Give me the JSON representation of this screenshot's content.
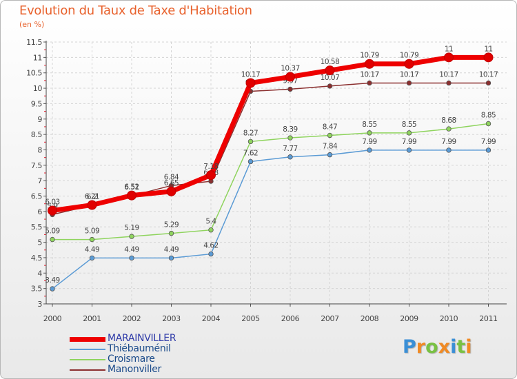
{
  "title": "Evolution du Taux de Taxe d'Habitation",
  "unit": "(en %)",
  "brand": {
    "letters": [
      {
        "ch": "P",
        "color": "#3a8fd6"
      },
      {
        "ch": "r",
        "color": "#f08a24"
      },
      {
        "ch": "o",
        "color": "#79c143"
      },
      {
        "ch": "x",
        "color": "#f08a24"
      },
      {
        "ch": "i",
        "color": "#3a8fd6"
      },
      {
        "ch": "t",
        "color": "#79c143"
      },
      {
        "ch": "i",
        "color": "#f08a24"
      }
    ]
  },
  "chart_data": {
    "type": "line",
    "x": [
      "2000",
      "2001",
      "2002",
      "2003",
      "2004",
      "2005",
      "2006",
      "2007",
      "2008",
      "2009",
      "2010",
      "2011"
    ],
    "ylim": [
      3,
      11.5
    ],
    "yticks": [
      "3",
      "3.5",
      "4",
      "4.5",
      "5",
      "5.5",
      "6",
      "6.5",
      "7",
      "7.5",
      "8",
      "8.5",
      "9",
      "9.5",
      "10",
      "10.5",
      "11",
      "11.5"
    ],
    "grid": true,
    "legend_position": "bottom-left",
    "series": [
      {
        "name": "Manonviller",
        "color": "#8b2f2f",
        "emphasis": false,
        "values": [
          5.9,
          6.2,
          6.51,
          6.84,
          6.98,
          9.9,
          9.97,
          10.07,
          10.17,
          10.17,
          10.17,
          10.17
        ],
        "labels": [
          "5.9",
          "6.2",
          "6.51",
          "6.84",
          "6.98",
          "9.9",
          "9.97",
          "10.07",
          "10.17",
          "10.17",
          "10.17",
          "10.17"
        ]
      },
      {
        "name": "Croismare",
        "color": "#8fd45e",
        "emphasis": false,
        "values": [
          5.09,
          5.09,
          5.19,
          5.29,
          5.4,
          8.27,
          8.39,
          8.47,
          8.55,
          8.55,
          8.68,
          8.85
        ],
        "labels": [
          "5.09",
          "5.09",
          "5.19",
          "5.29",
          "5.4",
          "8.27",
          "8.39",
          "8.47",
          "8.55",
          "8.55",
          "8.68",
          "8.85"
        ]
      },
      {
        "name": "Thiébauménil",
        "color": "#5b9bd5",
        "emphasis": false,
        "values": [
          3.49,
          4.49,
          4.49,
          4.49,
          4.62,
          7.62,
          7.77,
          7.84,
          7.99,
          7.99,
          7.99,
          7.99
        ],
        "labels": [
          "3.49",
          "4.49",
          "4.49",
          "4.49",
          "4.62",
          "7.62",
          "7.77",
          "7.84",
          "7.99",
          "7.99",
          "7.99",
          "7.99"
        ]
      },
      {
        "name": "MARAINVILLER",
        "color": "#ee0000",
        "emphasis": true,
        "values": [
          6.03,
          6.21,
          6.52,
          6.65,
          7.18,
          10.17,
          10.37,
          10.58,
          10.79,
          10.79,
          11,
          11
        ],
        "labels": [
          "6.03",
          "6.21",
          "6.52",
          "6.65",
          "7.18",
          "10.17",
          "10.37",
          "10.58",
          "10.79",
          "10.79",
          "11",
          "11"
        ]
      }
    ],
    "legend_order": [
      "MARAINVILLER",
      "Thiébauménil",
      "Croismare",
      "Manonviller"
    ]
  }
}
